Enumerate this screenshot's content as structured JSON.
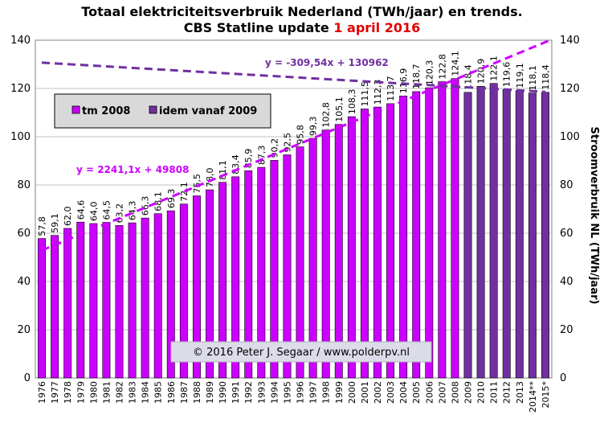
{
  "colors": {
    "series_a": "#cc00ff",
    "series_b": "#7030a0",
    "trend_up": "#cc00ff",
    "trend_down": "#7030a0",
    "title_highlight": "#e00000",
    "plot_bg": "#ffffff",
    "grid": "#c0c0c0",
    "legend_bg": "#d9d9d9"
  },
  "chart_data": {
    "type": "bar",
    "title_line1": "Totaal elektriciteitsverbruik  Nederland (TWh/jaar) en trends.",
    "title_line2_prefix": "CBS Statline  update ",
    "title_line2_highlight": "1 april  2016",
    "ylabel_right": "Stroomverbruik  NL  (TWh/jaar)",
    "ylim": [
      0,
      140
    ],
    "yticks": [
      0,
      20,
      40,
      60,
      80,
      100,
      120,
      140
    ],
    "grid": true,
    "categories": [
      "1976",
      "1977",
      "1978",
      "1979",
      "1980",
      "1981",
      "1982",
      "1983",
      "1984",
      "1985",
      "1986",
      "1987",
      "1988",
      "1989",
      "1990",
      "1991",
      "1992",
      "1993",
      "1994",
      "1995",
      "1996",
      "1997",
      "1998",
      "1999",
      "2000",
      "2001",
      "2002",
      "2003",
      "2004",
      "2005",
      "2006",
      "2007",
      "2008",
      "2009",
      "2010",
      "2011",
      "2012",
      "2013",
      "2014**",
      "2015*"
    ],
    "values": [
      57.8,
      59.1,
      62.0,
      64.6,
      64.0,
      64.5,
      63.2,
      64.3,
      66.3,
      68.1,
      69.3,
      72.1,
      75.5,
      78.0,
      81.1,
      83.4,
      85.9,
      87.3,
      90.2,
      92.5,
      95.8,
      99.3,
      102.8,
      105.1,
      108.3,
      111.5,
      112.3,
      113.7,
      116.9,
      118.7,
      120.3,
      122.8,
      124.1,
      118.4,
      120.9,
      122.1,
      119.6,
      119.1,
      118.1,
      118.4
    ],
    "labels": [
      "57,8",
      "59,1",
      "62,0",
      "64,6",
      "64,0",
      "64,5",
      "63,2",
      "64,3",
      "66,3",
      "68,1",
      "69,3",
      "72,1",
      "75,5",
      "78,0",
      "81,1",
      "83,4",
      "85,9",
      "87,3",
      "90,2",
      "92,5",
      "95,8",
      "99,3",
      "102,8",
      "105,1",
      "108,3",
      "111,5",
      "112,3",
      "113,7",
      "116,9",
      "118,7",
      "120,3",
      "122,8",
      "124,1",
      "118,4",
      "120,9",
      "122,1",
      "119,6",
      "119,1",
      "118,1",
      "118,4"
    ],
    "series_split_index": 33,
    "series": [
      {
        "name": "tm 2008"
      },
      {
        "name": "idem vanaf 2009"
      }
    ],
    "legend_placement": "upper-left inside plot",
    "trendlines": [
      {
        "equation": "y = 2241,1x + 49808",
        "start": 52.9,
        "end": 140.3
      },
      {
        "equation": "y = -309,54x + 130962",
        "start": 130.7,
        "end": 118.6
      }
    ],
    "copyright": "© 2016  Peter J. Segaar  /  www.polderpv.nl"
  }
}
